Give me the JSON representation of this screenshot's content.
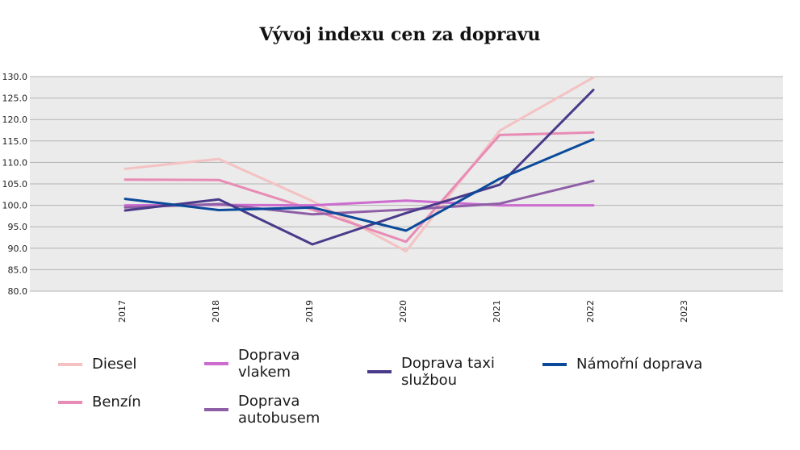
{
  "chart_data": {
    "type": "line",
    "title": "Vývoj indexu cen za dopravu",
    "xlabel": "",
    "ylabel": "",
    "categories": [
      "2017",
      "2018",
      "2019",
      "2020",
      "2021",
      "2022",
      "2023"
    ],
    "ylim": [
      80,
      130
    ],
    "yticks": [
      "80.0",
      "85.0",
      "90.0",
      "95.0",
      "100.0",
      "105.0",
      "110.0",
      "115.0",
      "120.0",
      "125.0",
      "130.0"
    ],
    "grid": true,
    "legend_position": "bottom",
    "series": [
      {
        "name": "Diesel",
        "color": "#f4c2c2",
        "values": [
          108.5,
          110.8,
          101.0,
          89.3,
          117.4,
          129.8,
          null
        ]
      },
      {
        "name": "Benzín",
        "color": "#e88bb5",
        "values": [
          106.0,
          105.9,
          99.0,
          91.5,
          116.4,
          117.0,
          null
        ]
      },
      {
        "name": "Doprava\nvlakem",
        "color": "#cc6ccf",
        "values": [
          100.0,
          100.1,
          100.0,
          101.1,
          100.0,
          100.0,
          null
        ]
      },
      {
        "name": "Doprava\nautobusem",
        "color": "#8e5fa6",
        "values": [
          99.5,
          100.3,
          97.9,
          99.0,
          100.4,
          105.7,
          null
        ]
      },
      {
        "name": "Doprava taxi\nslužbou",
        "color": "#4a3a8a",
        "values": [
          98.8,
          101.4,
          90.9,
          98.2,
          104.8,
          126.9,
          null
        ]
      },
      {
        "name": "Námořní doprava",
        "color": "#0b4a9a",
        "values": [
          101.5,
          98.9,
          99.5,
          94.1,
          106.2,
          115.4,
          null
        ]
      }
    ]
  }
}
